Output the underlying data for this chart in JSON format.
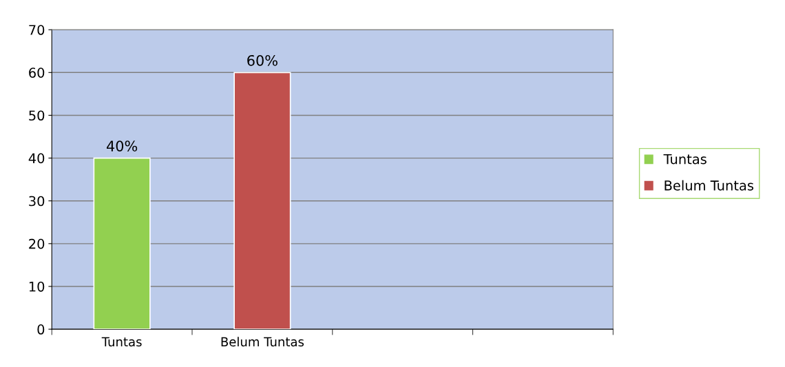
{
  "chart_data": {
    "type": "bar",
    "categories": [
      "Tuntas",
      "Belum Tuntas",
      null,
      null
    ],
    "series": [
      {
        "name": "Tuntas",
        "color": "#92d050",
        "values": [
          40,
          null,
          null,
          null
        ],
        "value_labels": [
          "40%",
          null,
          null,
          null
        ]
      },
      {
        "name": "Belum Tuntas",
        "color": "#c0504d",
        "values": [
          null,
          60,
          null,
          null
        ],
        "value_labels": [
          null,
          "60%",
          null,
          null
        ]
      }
    ],
    "ylim": [
      0,
      70
    ],
    "yticks": [
      0,
      10,
      20,
      30,
      40,
      50,
      60,
      70
    ],
    "grid": "y",
    "legend": "right"
  }
}
